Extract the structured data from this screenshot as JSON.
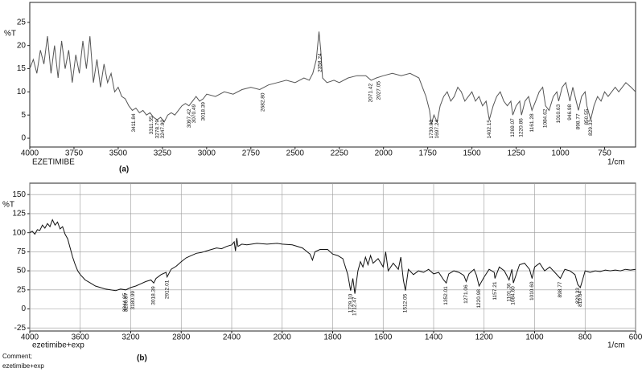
{
  "chart_data": [
    {
      "type": "line",
      "caption": "(a)",
      "sample_name": "EZETIMIBE",
      "x_label": "1/cm",
      "y_label": "%T",
      "color": "#555555",
      "grid": false,
      "x_scale": "linear",
      "xlim": [
        4000,
        575
      ],
      "ylim": [
        -1.9,
        29.3
      ],
      "xticks": [
        4000,
        3750,
        3500,
        3250,
        3000,
        2750,
        2500,
        2250,
        2000,
        1750,
        1500,
        1250,
        1000,
        750
      ],
      "yticks": [
        0,
        5,
        10,
        15,
        20,
        25
      ],
      "x": [
        4000,
        3980,
        3960,
        3940,
        3920,
        3900,
        3880,
        3860,
        3840,
        3820,
        3800,
        3780,
        3760,
        3740,
        3720,
        3700,
        3680,
        3660,
        3640,
        3620,
        3600,
        3580,
        3560,
        3540,
        3520,
        3500,
        3480,
        3460,
        3440,
        3420,
        3400,
        3380,
        3360,
        3340,
        3320,
        3300,
        3280,
        3260,
        3240,
        3220,
        3200,
        3180,
        3160,
        3140,
        3120,
        3100,
        3080,
        3060,
        3040,
        3020,
        3000,
        2950,
        2900,
        2850,
        2800,
        2750,
        2700,
        2650,
        2600,
        2550,
        2500,
        2450,
        2420,
        2400,
        2380,
        2365,
        2355,
        2345,
        2320,
        2280,
        2250,
        2200,
        2150,
        2100,
        2070,
        2040,
        2000,
        1950,
        1900,
        1850,
        1800,
        1780,
        1760,
        1740,
        1730,
        1715,
        1697,
        1680,
        1660,
        1640,
        1620,
        1600,
        1580,
        1560,
        1540,
        1520,
        1500,
        1480,
        1460,
        1440,
        1420,
        1402,
        1380,
        1360,
        1340,
        1320,
        1300,
        1280,
        1269,
        1250,
        1230,
        1220,
        1200,
        1180,
        1161,
        1140,
        1120,
        1100,
        1084,
        1064,
        1040,
        1020,
        1010,
        990,
        970,
        946,
        930,
        898,
        880,
        860,
        850,
        829,
        810,
        790,
        770,
        750,
        730,
        710,
        690,
        670,
        650,
        630,
        600,
        575
      ],
      "values": [
        15,
        17,
        14,
        19,
        16,
        22,
        14,
        20,
        13,
        21,
        15,
        19,
        12,
        18,
        14,
        21,
        15,
        22,
        12,
        17,
        11,
        16,
        12,
        14,
        10,
        11,
        9,
        8.5,
        7,
        6,
        6.5,
        5.5,
        6,
        5,
        5.5,
        4.5,
        4,
        4.5,
        3.5,
        5,
        5.5,
        5,
        6,
        7,
        7.5,
        7,
        8,
        9,
        8,
        8.5,
        9.5,
        9,
        10,
        9.5,
        10.5,
        11,
        10.5,
        11.5,
        12,
        12.5,
        12,
        13,
        12.5,
        14,
        17,
        23,
        19,
        13,
        12,
        12.5,
        12,
        13,
        13.5,
        13.5,
        12.5,
        13,
        13.5,
        14,
        13.5,
        14,
        13,
        11,
        9,
        6,
        3,
        5,
        3.5,
        7,
        9,
        10,
        8,
        9,
        11,
        10,
        8,
        9,
        10,
        8,
        9,
        7,
        8,
        4,
        7,
        9,
        10,
        8,
        7,
        8,
        5,
        7,
        8,
        5,
        8,
        9,
        6,
        8,
        10,
        11,
        7,
        6,
        9,
        10,
        8,
        11,
        12,
        8,
        11,
        6,
        9,
        10,
        7,
        4,
        7,
        9,
        8,
        10,
        9,
        10,
        11,
        10,
        11,
        12,
        11,
        10
      ],
      "peak_labels": [
        {
          "value": 3411.84,
          "label": "3411.84"
        },
        {
          "value": 3311.55,
          "label": "3311.55"
        },
        {
          "value": 3278.79,
          "label": "3278.79"
        },
        {
          "value": 3247.9,
          "label": "3247.90"
        },
        {
          "value": 3097.42,
          "label": "3097.42"
        },
        {
          "value": 3070.49,
          "label": "3070.49"
        },
        {
          "value": 3018.39,
          "label": "3018.39"
        },
        {
          "value": 2682.8,
          "label": "2682.80"
        },
        {
          "value": 2358.24,
          "label": "2358.24"
        },
        {
          "value": 2071.42,
          "label": "2071.42"
        },
        {
          "value": 2027.05,
          "label": "2027.05"
        },
        {
          "value": 1730.03,
          "label": "1730.03"
        },
        {
          "value": 1697.24,
          "label": "1697.24"
        },
        {
          "value": 1402.15,
          "label": "1402.15"
        },
        {
          "value": 1269.07,
          "label": "1269.07"
        },
        {
          "value": 1220.86,
          "label": "1220.86"
        },
        {
          "value": 1161.28,
          "label": "1161.28"
        },
        {
          "value": 1084.62,
          "label": "1084.62"
        },
        {
          "value": 1010.63,
          "label": "1010.63"
        },
        {
          "value": 946.98,
          "label": "946.98"
        },
        {
          "value": 898.77,
          "label": "898.77"
        },
        {
          "value": 850.55,
          "label": "850.55"
        },
        {
          "value": 829.33,
          "label": "829.33"
        }
      ]
    },
    {
      "type": "line",
      "caption": "(b)",
      "sample_name": "ezetimibe+exp",
      "x_label": "1/cm",
      "y_label": "%T",
      "color": "#111111",
      "grid": true,
      "x_scale": "segmented",
      "comment_label": "Comment;",
      "comment": "ezetimibe+exp",
      "xlim": [
        4000,
        600
      ],
      "ylim": [
        -29,
        165
      ],
      "xticks": [
        4000,
        3600,
        3200,
        2800,
        2400,
        2000,
        1800,
        1600,
        1400,
        1200,
        1000,
        800,
        600
      ],
      "yticks": [
        -25,
        0,
        25,
        50,
        75,
        100,
        125,
        150
      ],
      "x": [
        4000,
        3980,
        3960,
        3940,
        3920,
        3900,
        3880,
        3860,
        3840,
        3820,
        3800,
        3780,
        3760,
        3740,
        3720,
        3700,
        3680,
        3660,
        3640,
        3620,
        3600,
        3560,
        3520,
        3480,
        3440,
        3400,
        3360,
        3320,
        3280,
        3240,
        3200,
        3160,
        3120,
        3080,
        3040,
        3018,
        3000,
        2960,
        2920,
        2912,
        2880,
        2840,
        2800,
        2760,
        2720,
        2680,
        2640,
        2600,
        2560,
        2520,
        2480,
        2440,
        2400,
        2380,
        2370,
        2360,
        2350,
        2320,
        2280,
        2200,
        2120,
        2040,
        2000,
        1960,
        1920,
        1890,
        1880,
        1870,
        1850,
        1820,
        1800,
        1780,
        1760,
        1740,
        1729,
        1720,
        1712,
        1700,
        1690,
        1680,
        1670,
        1660,
        1650,
        1640,
        1620,
        1600,
        1590,
        1580,
        1560,
        1540,
        1530,
        1520,
        1512,
        1500,
        1480,
        1460,
        1440,
        1420,
        1400,
        1380,
        1360,
        1350,
        1340,
        1320,
        1300,
        1280,
        1271,
        1260,
        1240,
        1230,
        1220,
        1200,
        1180,
        1160,
        1157,
        1140,
        1120,
        1101,
        1090,
        1084,
        1070,
        1060,
        1040,
        1020,
        1010,
        1000,
        980,
        960,
        940,
        920,
        898,
        880,
        860,
        840,
        829,
        819,
        810,
        800,
        780,
        760,
        740,
        720,
        700,
        680,
        660,
        640,
        620,
        600
      ],
      "values": [
        100,
        102,
        98,
        104,
        103,
        110,
        106,
        112,
        108,
        117,
        110,
        114,
        105,
        108,
        98,
        92,
        80,
        68,
        58,
        50,
        45,
        38,
        34,
        30,
        28,
        26,
        25,
        24,
        26,
        25,
        28,
        30,
        33,
        36,
        38,
        34,
        40,
        45,
        48,
        42,
        52,
        56,
        62,
        67,
        70,
        73,
        74,
        76,
        78,
        80,
        79,
        82,
        84,
        88,
        76,
        93,
        82,
        85,
        84,
        86,
        85,
        86,
        85,
        84,
        80,
        72,
        64,
        75,
        78,
        78,
        72,
        70,
        66,
        45,
        24,
        40,
        20,
        50,
        62,
        55,
        68,
        58,
        70,
        60,
        66,
        55,
        75,
        50,
        60,
        52,
        68,
        38,
        24,
        52,
        45,
        50,
        48,
        52,
        46,
        48,
        38,
        34,
        46,
        50,
        48,
        44,
        36,
        46,
        52,
        44,
        30,
        42,
        52,
        48,
        40,
        55,
        50,
        38,
        52,
        34,
        48,
        58,
        60,
        52,
        40,
        55,
        60,
        50,
        55,
        48,
        40,
        52,
        50,
        45,
        32,
        28,
        38,
        50,
        48,
        50,
        49,
        51,
        50,
        51,
        50,
        52,
        51,
        52
      ],
      "peak_labels": [
        {
          "value": 3180.99,
          "label": "3180.99"
        },
        {
          "value": 3236.87,
          "label": "3236.87"
        },
        {
          "value": 3244.95,
          "label": "3244.95"
        },
        {
          "value": 3018.39,
          "label": "3018.39"
        },
        {
          "value": 2912.01,
          "label": "2912.01"
        },
        {
          "value": 1729.1,
          "label": "1729.10"
        },
        {
          "value": 1712.47,
          "label": "1712.47"
        },
        {
          "value": 1512.05,
          "label": "1512.05"
        },
        {
          "value": 1352.01,
          "label": "1352.01"
        },
        {
          "value": 1271.06,
          "label": "1271.06"
        },
        {
          "value": 1220.98,
          "label": "1220.98"
        },
        {
          "value": 1157.21,
          "label": "1157.21"
        },
        {
          "value": 1101.36,
          "label": "1101.36"
        },
        {
          "value": 1084.6,
          "label": "1084.60"
        },
        {
          "value": 1010.6,
          "label": "1010.60"
        },
        {
          "value": 898.77,
          "label": "898.77"
        },
        {
          "value": 829.33,
          "label": "829.33"
        },
        {
          "value": 819.64,
          "label": "819.64"
        }
      ]
    }
  ]
}
